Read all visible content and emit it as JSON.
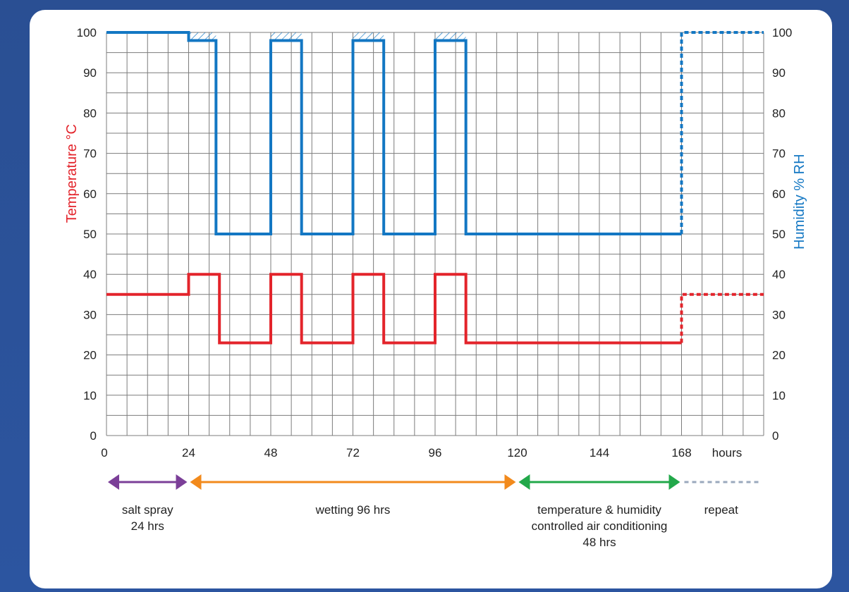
{
  "chart_data": {
    "type": "line",
    "x_ticks": [
      0,
      24,
      48,
      72,
      96,
      120,
      144,
      168
    ],
    "x_unit": "hours",
    "xlim": [
      0,
      192
    ],
    "ylim": [
      0,
      100
    ],
    "y_ticks": [
      0,
      10,
      20,
      30,
      40,
      50,
      60,
      70,
      80,
      90,
      100
    ],
    "ylabel_left": "Temperature °C",
    "ylabel_right": "Humidity % RH",
    "grid": true,
    "colors": {
      "temperature": "#e3242b",
      "humidity": "#1377c3"
    },
    "series": [
      {
        "key": "humidity",
        "color": "#1377c3",
        "solid": [
          [
            0,
            100
          ],
          [
            24,
            100
          ],
          [
            24,
            98
          ],
          [
            32,
            98
          ],
          [
            32,
            50
          ],
          [
            48,
            50
          ],
          [
            48,
            98
          ],
          [
            57,
            98
          ],
          [
            57,
            50
          ],
          [
            72,
            50
          ],
          [
            72,
            98
          ],
          [
            81,
            98
          ],
          [
            81,
            50
          ],
          [
            96,
            50
          ],
          [
            96,
            98
          ],
          [
            105,
            98
          ],
          [
            105,
            50
          ],
          [
            168,
            50
          ]
        ],
        "dashed": [
          [
            168,
            50
          ],
          [
            168,
            100
          ],
          [
            192,
            100
          ]
        ]
      },
      {
        "key": "temperature",
        "color": "#e3242b",
        "solid": [
          [
            0,
            35
          ],
          [
            24,
            35
          ],
          [
            24,
            40
          ],
          [
            33,
            40
          ],
          [
            33,
            23
          ],
          [
            48,
            23
          ],
          [
            48,
            40
          ],
          [
            57,
            40
          ],
          [
            57,
            23
          ],
          [
            72,
            23
          ],
          [
            72,
            40
          ],
          [
            81,
            40
          ],
          [
            81,
            23
          ],
          [
            96,
            23
          ],
          [
            96,
            40
          ],
          [
            105,
            40
          ],
          [
            105,
            23
          ],
          [
            168,
            23
          ]
        ],
        "dashed": [
          [
            168,
            23
          ],
          [
            168,
            35
          ],
          [
            192,
            35
          ]
        ]
      }
    ],
    "hatched_regions": [
      [
        24,
        32
      ],
      [
        48,
        57
      ],
      [
        72,
        81
      ],
      [
        96,
        105
      ]
    ],
    "phases": [
      {
        "from": 0,
        "to": 24,
        "color": "#7b3f98",
        "label": [
          "salt spray",
          "24 hrs"
        ]
      },
      {
        "from": 24,
        "to": 120,
        "color": "#f28a1c",
        "label": [
          "wetting 96 hrs"
        ]
      },
      {
        "from": 120,
        "to": 168,
        "color": "#22a84a",
        "label": [
          "temperature & humidity",
          "controlled air conditioning",
          "48 hrs"
        ]
      },
      {
        "from": 168,
        "to": 192,
        "color": "#9aa8bd",
        "label": [
          "repeat"
        ],
        "dashed": true
      }
    ]
  }
}
